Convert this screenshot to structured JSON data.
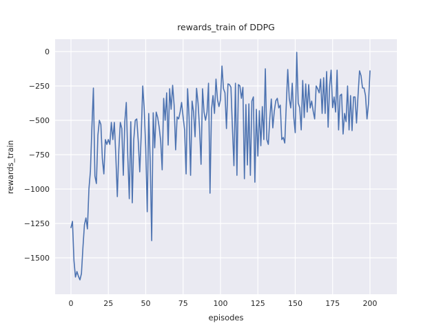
{
  "chart_data": {
    "type": "line",
    "title": "rewards_train of DDPG",
    "xlabel": "episodes",
    "ylabel": "rewards_train",
    "x_start": 0,
    "x_step": 1,
    "series": [
      {
        "name": "rewards_train",
        "color": "#4C72B0",
        "values": [
          -1280,
          -1235,
          -1520,
          -1640,
          -1600,
          -1635,
          -1660,
          -1615,
          -1425,
          -1260,
          -1210,
          -1290,
          -1000,
          -870,
          -550,
          -265,
          -905,
          -960,
          -610,
          -500,
          -530,
          -780,
          -890,
          -640,
          -675,
          -640,
          -675,
          -515,
          -640,
          -515,
          -760,
          -1055,
          -720,
          -515,
          -560,
          -900,
          -510,
          -370,
          -760,
          -1070,
          -510,
          -1100,
          -640,
          -500,
          -490,
          -650,
          -875,
          -600,
          -250,
          -420,
          -700,
          -1165,
          -450,
          -800,
          -1375,
          -445,
          -700,
          -440,
          -480,
          -550,
          -650,
          -860,
          -340,
          -500,
          -300,
          -680,
          -270,
          -420,
          -245,
          -390,
          -715,
          -475,
          -490,
          -440,
          -370,
          -475,
          -570,
          -890,
          -270,
          -475,
          -900,
          -360,
          -440,
          -620,
          -267,
          -375,
          -560,
          -820,
          -270,
          -440,
          -500,
          -440,
          -230,
          -1030,
          -420,
          -320,
          -450,
          -200,
          -350,
          -400,
          -350,
          -105,
          -270,
          -300,
          -560,
          -235,
          -240,
          -260,
          -560,
          -830,
          -230,
          -900,
          -240,
          -250,
          -340,
          -260,
          -925,
          -385,
          -825,
          -380,
          -900,
          -360,
          -330,
          -950,
          -420,
          -760,
          -430,
          -685,
          -400,
          -640,
          -125,
          -640,
          -675,
          -485,
          -345,
          -555,
          -433,
          -358,
          -340,
          -410,
          -390,
          -640,
          -625,
          -665,
          -390,
          -130,
          -340,
          -410,
          -230,
          -475,
          -590,
          -5,
          -375,
          -408,
          -570,
          -210,
          -480,
          -235,
          -440,
          -240,
          -410,
          -360,
          -433,
          -490,
          -250,
          -270,
          -300,
          -200,
          -450,
          -190,
          -450,
          -145,
          -550,
          -250,
          -135,
          -408,
          -330,
          -440,
          -135,
          -570,
          -320,
          -310,
          -600,
          -450,
          -510,
          -250,
          -570,
          -320,
          -575,
          -330,
          -330,
          -520,
          -320,
          -140,
          -175,
          -265,
          -265,
          -320,
          -490,
          -380,
          -140
        ]
      }
    ],
    "xticks": [
      0,
      25,
      50,
      75,
      100,
      125,
      150,
      175,
      200
    ],
    "xtick_labels": [
      "0",
      "25",
      "50",
      "75",
      "100",
      "125",
      "150",
      "175",
      "200"
    ],
    "yticks": [
      0,
      -250,
      -500,
      -750,
      -1000,
      -1250,
      -1500
    ],
    "ytick_labels": [
      "0",
      "−250",
      "−500",
      "−750",
      "−1000",
      "−1250",
      "−1500"
    ],
    "xlim": [
      -10.6,
      218
    ],
    "ylim": [
      -1765,
      90
    ],
    "grid": true,
    "legend_position": "none",
    "plot_bg": "#EAEAF2",
    "grid_color": "#FFFFFF",
    "text_color": "#262626",
    "figure_bg": "#FFFFFF"
  }
}
